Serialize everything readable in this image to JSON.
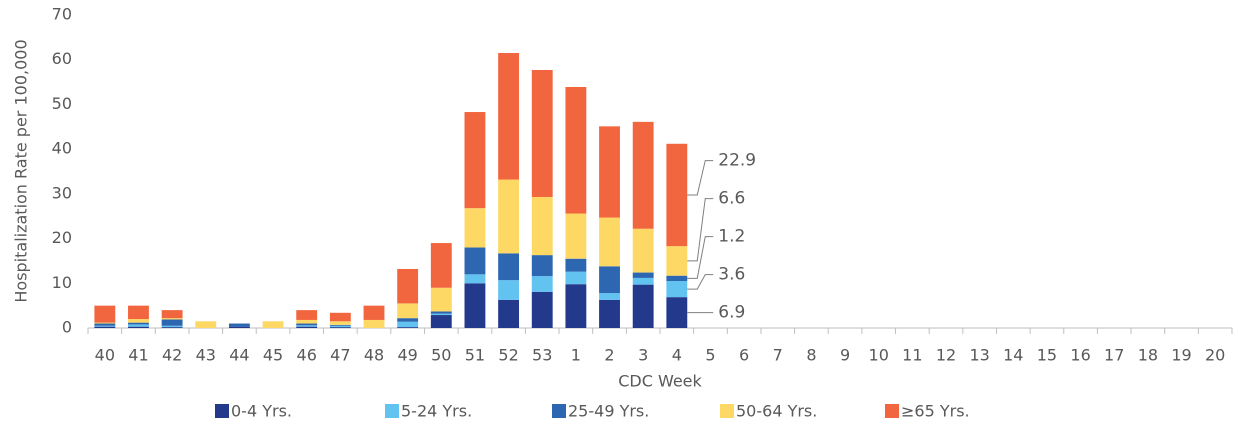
{
  "chart_data": {
    "type": "stacked_bar",
    "y_label": "Hospitalization Rate per 100,000",
    "x_label": "CDC Week",
    "categories": [
      "40",
      "41",
      "42",
      "43",
      "44",
      "45",
      "46",
      "47",
      "48",
      "49",
      "50",
      "51",
      "52",
      "53",
      "1",
      "2",
      "3",
      "4",
      "5",
      "6",
      "7",
      "8",
      "9",
      "10",
      "11",
      "12",
      "13",
      "14",
      "15",
      "16",
      "17",
      "18",
      "19",
      "20"
    ],
    "series": [
      {
        "name": "0-4 Yrs.",
        "color": "#233a8c",
        "values": [
          0.3,
          0.3,
          0.2,
          0,
          0.3,
          0,
          0.3,
          0.2,
          0,
          0.2,
          2.9,
          10,
          6.3,
          8.1,
          9.8,
          6.3,
          9.7,
          6.9,
          null,
          null,
          null,
          null,
          null,
          null,
          null,
          null,
          null,
          null,
          null,
          null,
          null,
          null,
          null,
          null
        ]
      },
      {
        "name": "5-24 Yrs.",
        "color": "#62c3f0",
        "values": [
          0.2,
          0.5,
          0.3,
          0,
          0,
          0,
          0.3,
          0.3,
          0,
          1.2,
          0.3,
          2,
          4.4,
          3.5,
          2.8,
          1.5,
          1.5,
          3.6,
          null,
          null,
          null,
          null,
          null,
          null,
          null,
          null,
          null,
          null,
          null,
          null,
          null,
          null,
          null,
          null
        ]
      },
      {
        "name": "25-49 Yrs.",
        "color": "#2e67b1",
        "values": [
          0.5,
          0.4,
          1.4,
          0,
          0.7,
          0,
          0.4,
          0.2,
          0,
          0.8,
          0.5,
          6,
          6,
          4.7,
          2.9,
          6,
          1.2,
          1.2,
          null,
          null,
          null,
          null,
          null,
          null,
          null,
          null,
          null,
          null,
          null,
          null,
          null,
          null,
          null,
          null
        ]
      },
      {
        "name": "50-64 Yrs.",
        "color": "#fdd865",
        "values": [
          0.2,
          0.8,
          0.3,
          1.5,
          0,
          1.5,
          0.8,
          0.8,
          1.8,
          3.3,
          5.3,
          8.8,
          16.5,
          13,
          10.1,
          10.9,
          9.8,
          6.6,
          null,
          null,
          null,
          null,
          null,
          null,
          null,
          null,
          null,
          null,
          null,
          null,
          null,
          null,
          null,
          null
        ]
      },
      {
        "name": "≥65 Yrs.",
        "color": "#f2663f",
        "values": [
          3.8,
          3,
          1.8,
          0,
          0,
          0,
          2.2,
          1.9,
          3.2,
          7.7,
          10,
          21.5,
          28.3,
          28.4,
          28.3,
          20.4,
          23.9,
          22.9,
          null,
          null,
          null,
          null,
          null,
          null,
          null,
          null,
          null,
          null,
          null,
          null,
          null,
          null,
          null,
          null
        ]
      }
    ],
    "data_labels": "last",
    "ylim": [
      0,
      70
    ],
    "yticks": [
      0,
      10,
      20,
      30,
      40,
      50,
      60,
      70
    ],
    "grid": false
  }
}
